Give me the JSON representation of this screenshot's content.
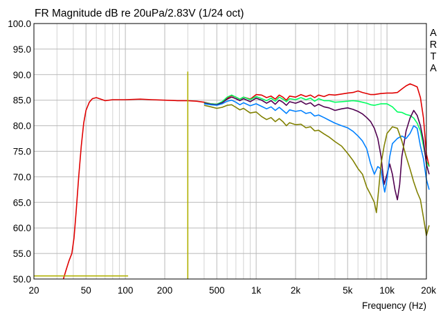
{
  "chart_data": {
    "type": "line",
    "title": "FR Magnitude dB re 20uPa/2.83V (1/24 oct)",
    "xlabel": "Frequency (Hz)",
    "ylabel": "",
    "watermark": "ARTA",
    "x_scale": "log",
    "xlim": [
      20,
      20000
    ],
    "ylim": [
      50,
      100
    ],
    "grid": true,
    "legend": "none",
    "x_ticks": [
      {
        "value": 20,
        "label": "20"
      },
      {
        "value": 50,
        "label": "50"
      },
      {
        "value": 100,
        "label": "100"
      },
      {
        "value": 200,
        "label": "200"
      },
      {
        "value": 500,
        "label": "500"
      },
      {
        "value": 1000,
        "label": "1k"
      },
      {
        "value": 2000,
        "label": "2k"
      },
      {
        "value": 5000,
        "label": "5k"
      },
      {
        "value": 10000,
        "label": "10k"
      },
      {
        "value": 20000,
        "label": "20k"
      }
    ],
    "y_ticks": [
      {
        "value": 100,
        "label": "100.0"
      },
      {
        "value": 95,
        "label": "95.0"
      },
      {
        "value": 90,
        "label": "90.0"
      },
      {
        "value": 85,
        "label": "85.0"
      },
      {
        "value": 80,
        "label": "80.0"
      },
      {
        "value": 75,
        "label": "75.0"
      },
      {
        "value": 70,
        "label": "70.0"
      },
      {
        "value": 65,
        "label": "65.0"
      },
      {
        "value": 60,
        "label": "60.0"
      },
      {
        "value": 55,
        "label": "55.0"
      },
      {
        "value": 50,
        "label": "50.0"
      }
    ],
    "series": [
      {
        "color": "#e00000",
        "points": [
          [
            33.6,
            50
          ],
          [
            35,
            51.5
          ],
          [
            37,
            53.5
          ],
          [
            39,
            55
          ],
          [
            40.5,
            58
          ],
          [
            42,
            63
          ],
          [
            44,
            70
          ],
          [
            46,
            76
          ],
          [
            48,
            80.5
          ],
          [
            50,
            83
          ],
          [
            53,
            84.6
          ],
          [
            56,
            85.3
          ],
          [
            60,
            85.5
          ],
          [
            65,
            85.2
          ],
          [
            70,
            84.9
          ],
          [
            80,
            85.1
          ],
          [
            100,
            85.1
          ],
          [
            130,
            85.2
          ],
          [
            160,
            85.1
          ],
          [
            200,
            85.0
          ],
          [
            250,
            84.9
          ],
          [
            300,
            84.9
          ],
          [
            350,
            84.8
          ],
          [
            400,
            84.6
          ],
          [
            450,
            84.3
          ],
          [
            500,
            84.2
          ],
          [
            550,
            84.6
          ],
          [
            600,
            85.4
          ],
          [
            650,
            85.9
          ],
          [
            700,
            85.6
          ],
          [
            750,
            85.2
          ],
          [
            800,
            85.6
          ],
          [
            900,
            85.2
          ],
          [
            1000,
            86.1
          ],
          [
            1100,
            86.0
          ],
          [
            1200,
            85.5
          ],
          [
            1300,
            85.8
          ],
          [
            1400,
            85.2
          ],
          [
            1500,
            86.0
          ],
          [
            1600,
            85.6
          ],
          [
            1700,
            85.0
          ],
          [
            1800,
            85.8
          ],
          [
            2000,
            85.6
          ],
          [
            2200,
            86.1
          ],
          [
            2400,
            85.7
          ],
          [
            2600,
            86.0
          ],
          [
            2800,
            85.5
          ],
          [
            3000,
            86.0
          ],
          [
            3300,
            85.7
          ],
          [
            3600,
            86.1
          ],
          [
            4000,
            86.0
          ],
          [
            4500,
            86.2
          ],
          [
            5000,
            86.4
          ],
          [
            5500,
            86.5
          ],
          [
            6000,
            86.8
          ],
          [
            6500,
            86.5
          ],
          [
            7000,
            86.3
          ],
          [
            7500,
            86.1
          ],
          [
            8000,
            86.1
          ],
          [
            9000,
            86.3
          ],
          [
            10000,
            86.4
          ],
          [
            11000,
            86.4
          ],
          [
            12000,
            86.5
          ],
          [
            13000,
            87.2
          ],
          [
            14000,
            87.8
          ],
          [
            15000,
            88.2
          ],
          [
            16000,
            87.9
          ],
          [
            17000,
            87.6
          ],
          [
            18000,
            85.5
          ],
          [
            19000,
            81.5
          ],
          [
            20000,
            74.5
          ],
          [
            21000,
            72.0
          ]
        ]
      },
      {
        "color": "#00ff60",
        "points": [
          [
            400,
            84.5
          ],
          [
            450,
            84.3
          ],
          [
            500,
            84.2
          ],
          [
            550,
            84.7
          ],
          [
            600,
            85.6
          ],
          [
            650,
            86.0
          ],
          [
            700,
            85.6
          ],
          [
            750,
            85.2
          ],
          [
            800,
            85.6
          ],
          [
            900,
            85.1
          ],
          [
            1000,
            85.7
          ],
          [
            1100,
            85.3
          ],
          [
            1200,
            84.9
          ],
          [
            1300,
            85.4
          ],
          [
            1400,
            84.8
          ],
          [
            1500,
            85.6
          ],
          [
            1600,
            85.2
          ],
          [
            1700,
            84.7
          ],
          [
            1800,
            85.3
          ],
          [
            2000,
            85.1
          ],
          [
            2200,
            85.5
          ],
          [
            2400,
            85.1
          ],
          [
            2600,
            85.4
          ],
          [
            2800,
            84.8
          ],
          [
            3000,
            85.3
          ],
          [
            3300,
            84.9
          ],
          [
            3600,
            84.9
          ],
          [
            4000,
            84.6
          ],
          [
            4500,
            84.7
          ],
          [
            5000,
            84.8
          ],
          [
            5500,
            84.9
          ],
          [
            6000,
            84.8
          ],
          [
            6500,
            84.6
          ],
          [
            7000,
            84.4
          ],
          [
            7500,
            84.1
          ],
          [
            8000,
            84.0
          ],
          [
            9000,
            84.3
          ],
          [
            10000,
            84.3
          ],
          [
            11000,
            83.7
          ],
          [
            12000,
            82.7
          ],
          [
            13000,
            82.6
          ],
          [
            14000,
            82.2
          ],
          [
            15000,
            82.0
          ],
          [
            16000,
            81.5
          ],
          [
            17000,
            80.5
          ],
          [
            18000,
            79.0
          ],
          [
            19000,
            76.0
          ],
          [
            20000,
            73.0
          ],
          [
            21000,
            72.0
          ]
        ]
      },
      {
        "color": "#500050",
        "points": [
          [
            400,
            84.4
          ],
          [
            450,
            84.2
          ],
          [
            500,
            84.1
          ],
          [
            550,
            84.5
          ],
          [
            600,
            85.2
          ],
          [
            650,
            85.6
          ],
          [
            700,
            85.3
          ],
          [
            750,
            84.9
          ],
          [
            800,
            85.3
          ],
          [
            900,
            84.7
          ],
          [
            1000,
            85.4
          ],
          [
            1100,
            85.0
          ],
          [
            1200,
            84.4
          ],
          [
            1300,
            84.9
          ],
          [
            1400,
            84.2
          ],
          [
            1500,
            85.0
          ],
          [
            1600,
            84.6
          ],
          [
            1700,
            84.0
          ],
          [
            1800,
            84.7
          ],
          [
            2000,
            84.4
          ],
          [
            2200,
            84.8
          ],
          [
            2400,
            84.2
          ],
          [
            2600,
            84.5
          ],
          [
            2800,
            83.8
          ],
          [
            3000,
            84.2
          ],
          [
            3300,
            83.7
          ],
          [
            3600,
            83.5
          ],
          [
            4000,
            83.0
          ],
          [
            4500,
            83.3
          ],
          [
            5000,
            83.5
          ],
          [
            5500,
            83.2
          ],
          [
            6000,
            82.8
          ],
          [
            6500,
            82.3
          ],
          [
            7000,
            81.6
          ],
          [
            7500,
            80.8
          ],
          [
            8000,
            79.5
          ],
          [
            8500,
            77.5
          ],
          [
            9000,
            74.0
          ],
          [
            9500,
            68.5
          ],
          [
            10000,
            70.5
          ],
          [
            10500,
            72.5
          ],
          [
            11000,
            70.5
          ],
          [
            11500,
            67.5
          ],
          [
            12000,
            65.5
          ],
          [
            12500,
            68.5
          ],
          [
            13000,
            74.0
          ],
          [
            14000,
            79.0
          ],
          [
            15000,
            81.5
          ],
          [
            16000,
            83.0
          ],
          [
            17000,
            82.0
          ],
          [
            18000,
            80.0
          ],
          [
            19000,
            77.0
          ],
          [
            20000,
            72.5
          ],
          [
            21000,
            70.5
          ]
        ]
      },
      {
        "color": "#0080ff",
        "points": [
          [
            400,
            84.3
          ],
          [
            450,
            84.1
          ],
          [
            500,
            84.0
          ],
          [
            550,
            84.3
          ],
          [
            600,
            84.8
          ],
          [
            650,
            85.0
          ],
          [
            700,
            84.6
          ],
          [
            750,
            84.1
          ],
          [
            800,
            84.5
          ],
          [
            900,
            83.9
          ],
          [
            1000,
            84.3
          ],
          [
            1100,
            83.8
          ],
          [
            1200,
            83.3
          ],
          [
            1300,
            83.7
          ],
          [
            1400,
            83.0
          ],
          [
            1500,
            83.6
          ],
          [
            1600,
            83.0
          ],
          [
            1700,
            82.4
          ],
          [
            1800,
            83.1
          ],
          [
            2000,
            82.8
          ],
          [
            2200,
            83.0
          ],
          [
            2400,
            82.4
          ],
          [
            2600,
            82.6
          ],
          [
            2800,
            81.9
          ],
          [
            3000,
            82.1
          ],
          [
            3300,
            81.6
          ],
          [
            3600,
            81.1
          ],
          [
            4000,
            80.5
          ],
          [
            4500,
            80.0
          ],
          [
            5000,
            79.6
          ],
          [
            5500,
            78.9
          ],
          [
            6000,
            78.0
          ],
          [
            6500,
            77.0
          ],
          [
            7000,
            75.5
          ],
          [
            7500,
            72.5
          ],
          [
            8000,
            70.5
          ],
          [
            8500,
            72.0
          ],
          [
            9000,
            71.5
          ],
          [
            9300,
            69.0
          ],
          [
            9600,
            67.0
          ],
          [
            10000,
            69.5
          ],
          [
            10500,
            74.0
          ],
          [
            11000,
            76.5
          ],
          [
            12000,
            77.5
          ],
          [
            13000,
            78.0
          ],
          [
            14000,
            77.5
          ],
          [
            15000,
            78.5
          ],
          [
            16000,
            80.0
          ],
          [
            17000,
            79.5
          ],
          [
            18000,
            76.0
          ],
          [
            19000,
            73.5
          ],
          [
            20000,
            69.5
          ],
          [
            21000,
            67.5
          ]
        ]
      },
      {
        "color": "#808000",
        "points": [
          [
            400,
            84.0
          ],
          [
            450,
            83.7
          ],
          [
            500,
            83.4
          ],
          [
            550,
            83.6
          ],
          [
            600,
            84.0
          ],
          [
            650,
            84.1
          ],
          [
            700,
            83.6
          ],
          [
            750,
            83.1
          ],
          [
            800,
            83.4
          ],
          [
            900,
            82.5
          ],
          [
            1000,
            82.7
          ],
          [
            1100,
            81.8
          ],
          [
            1200,
            81.2
          ],
          [
            1300,
            81.6
          ],
          [
            1400,
            80.8
          ],
          [
            1500,
            81.4
          ],
          [
            1600,
            80.8
          ],
          [
            1700,
            80.0
          ],
          [
            1800,
            80.6
          ],
          [
            2000,
            80.2
          ],
          [
            2200,
            80.3
          ],
          [
            2400,
            79.6
          ],
          [
            2600,
            79.8
          ],
          [
            2800,
            79.0
          ],
          [
            3000,
            79.1
          ],
          [
            3300,
            78.4
          ],
          [
            3600,
            77.8
          ],
          [
            4000,
            76.9
          ],
          [
            4500,
            76.0
          ],
          [
            5000,
            74.6
          ],
          [
            5500,
            73.2
          ],
          [
            6000,
            71.6
          ],
          [
            6500,
            70.5
          ],
          [
            7000,
            68.0
          ],
          [
            7500,
            66.5
          ],
          [
            8000,
            65.0
          ],
          [
            8300,
            63.0
          ],
          [
            8600,
            67.0
          ],
          [
            9000,
            72.5
          ],
          [
            9500,
            76.0
          ],
          [
            10000,
            78.5
          ],
          [
            11000,
            79.8
          ],
          [
            12000,
            79.5
          ],
          [
            13000,
            77.0
          ],
          [
            14000,
            74.0
          ],
          [
            15000,
            71.5
          ],
          [
            16000,
            69.0
          ],
          [
            17000,
            67.0
          ],
          [
            18000,
            65.5
          ],
          [
            19000,
            62.0
          ],
          [
            20000,
            58.5
          ],
          [
            21000,
            60.5
          ]
        ]
      },
      {
        "color": "#b0b000",
        "points": [
          [
            20,
            50.6
          ],
          [
            105,
            50.6
          ]
        ]
      },
      {
        "color": "#b0b000",
        "points": [
          [
            300,
            50.0
          ],
          [
            300,
            90.6
          ]
        ]
      }
    ]
  }
}
